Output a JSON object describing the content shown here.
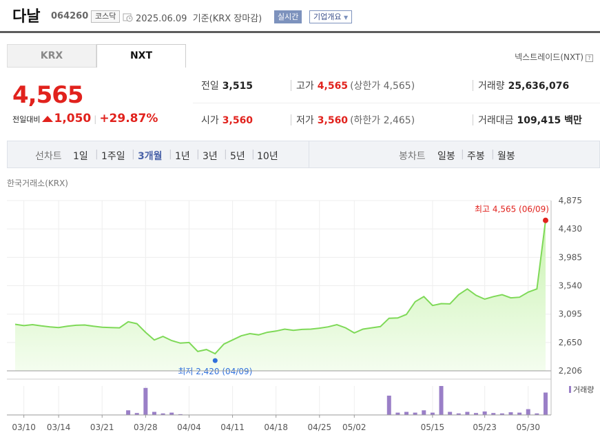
{
  "header": {
    "name": "다날",
    "code": "064260",
    "market": "코스닥",
    "date": "2025.06.09",
    "basis": "기준(KRX 장마감)",
    "realtime": "실시간",
    "corp_info": "기업개요"
  },
  "tabs": [
    "KRX",
    "NXT"
  ],
  "nxt_info": "넥스트레이드(NXT)",
  "price": {
    "current": "4,565",
    "change_label": "전일대비",
    "change": "1,050",
    "percent": "+29.87%"
  },
  "stats": {
    "prev_close": {
      "label": "전일",
      "value": "3,515"
    },
    "high": {
      "label": "고가",
      "value": "4,565",
      "limit": "(상한가 4,565)"
    },
    "volume": {
      "label": "거래량",
      "value": "25,636,076"
    },
    "open": {
      "label": "시가",
      "value": "3,560"
    },
    "low": {
      "label": "저가",
      "value": "3,560",
      "limit": "(하한가 2,465)"
    },
    "amount": {
      "label": "거래대금",
      "value": "109,415 백만"
    }
  },
  "periods": {
    "label": "선차트",
    "items": [
      "1일",
      "1주일",
      "3개월",
      "1년",
      "3년",
      "5년",
      "10년"
    ],
    "selected": "3개월"
  },
  "candles": {
    "label": "봉차트",
    "items": [
      "일봉",
      "주봉",
      "월봉"
    ]
  },
  "chart_source": "한국거래소(KRX)",
  "chart_data": {
    "type": "area",
    "series": [
      {
        "values": [
          2935,
          2915,
          2930,
          2910,
          2895,
          2885,
          2905,
          2920,
          2925,
          2905,
          2890,
          2885,
          2880,
          2975,
          2945,
          2810,
          2690,
          2745,
          2680,
          2640,
          2650,
          2510,
          2540,
          2475,
          2625,
          2690,
          2755,
          2790,
          2770,
          2810,
          2830,
          2860,
          2840,
          2855,
          2860,
          2875,
          2895,
          2930,
          2880,
          2800,
          2860,
          2880,
          2900,
          3030,
          3035,
          3090,
          3290,
          3370,
          3230,
          3260,
          3255,
          3400,
          3490,
          3390,
          3330,
          3370,
          3400,
          3350,
          3360,
          3440,
          3490,
          4565
        ]
      },
      {
        "values": [
          0,
          0,
          0,
          0,
          0,
          0,
          0,
          0,
          0,
          0,
          0,
          0,
          0,
          12,
          5,
          70,
          8,
          4,
          6,
          2,
          0,
          0,
          0,
          0,
          0,
          0,
          0,
          0,
          0,
          0,
          0,
          0,
          0,
          0,
          0,
          0,
          0,
          0,
          0,
          0,
          0,
          0,
          0,
          50,
          6,
          8,
          6,
          12,
          6,
          75,
          8,
          4,
          8,
          5,
          9,
          5,
          4,
          7,
          6,
          15,
          4,
          58
        ]
      }
    ],
    "ylim": [
      2206,
      4875
    ],
    "y_ticks": [
      "4,875",
      "4,430",
      "3,985",
      "3,540",
      "3,095",
      "2,650",
      "2,206"
    ],
    "x_ticks": [
      "03/10",
      "03/14",
      "03/21",
      "03/28",
      "04/04",
      "04/11",
      "04/18",
      "04/25",
      "05/02",
      "05/15",
      "05/23",
      "05/30"
    ],
    "max_annotation": "최고 4,565 (06/09)",
    "min_annotation": "최저 2,420 (04/09)",
    "volume_label": "거래량",
    "colors": {
      "line": "#7ed957",
      "fill_top": "#c9f3b0",
      "fill_bottom": "#f4fdef",
      "bar": "#9a7fc7",
      "max": "#e1221d",
      "min": "#2f6fdb"
    }
  }
}
